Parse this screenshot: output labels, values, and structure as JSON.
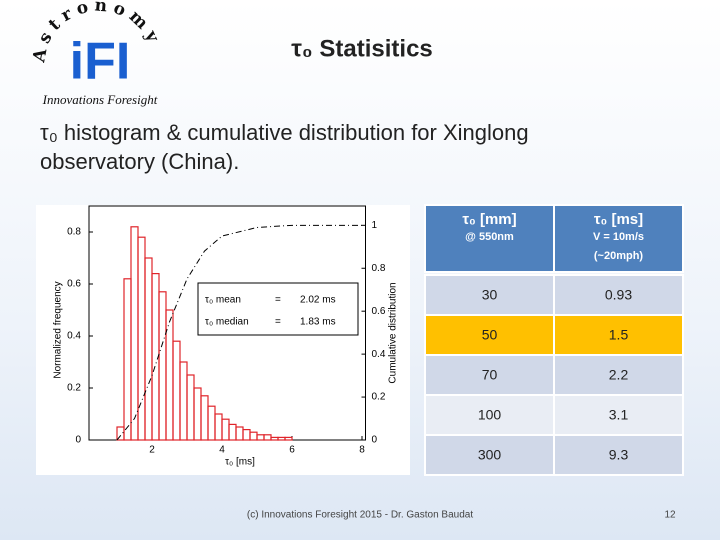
{
  "logo": {
    "arc": "Astronomy",
    "mark": "iFI",
    "name": "Innovations Foresight"
  },
  "header": {
    "title": "τ₀ Statisitics",
    "subtitle": "τ₀ histogram & cumulative distribution for Xinglong observatory (China)."
  },
  "chart_data": {
    "type": "histogram",
    "bins": [
      1.0,
      1.2,
      1.4,
      1.6,
      1.8,
      2.0,
      2.2,
      2.4,
      2.6,
      2.8,
      3.0,
      3.2,
      3.4,
      3.6,
      3.8,
      4.0,
      4.2,
      4.4,
      4.6,
      4.8,
      5.0,
      5.2,
      5.4,
      5.6,
      5.8,
      6.0
    ],
    "values": [
      0.05,
      0.62,
      0.82,
      0.78,
      0.7,
      0.64,
      0.57,
      0.5,
      0.38,
      0.3,
      0.25,
      0.2,
      0.17,
      0.13,
      0.1,
      0.08,
      0.06,
      0.05,
      0.04,
      0.03,
      0.02,
      0.02,
      0.01,
      0.01,
      0.01
    ],
    "color": "#e0242a",
    "cumulative": {
      "x": [
        1.0,
        1.5,
        2.0,
        2.5,
        3.0,
        3.5,
        4.0,
        5.0,
        6.0,
        8.0
      ],
      "values": [
        0,
        0.1,
        0.3,
        0.55,
        0.75,
        0.88,
        0.95,
        0.99,
        1,
        1
      ],
      "axis": "y2",
      "color": "#000000"
    },
    "xlabel": "τ₀ [ms]",
    "ylabel": "Normalized frequency",
    "y2label": "Cumulative distribution",
    "xlim": [
      0.2,
      8.1
    ],
    "xticks": [
      2,
      4,
      6,
      8
    ],
    "ylim": [
      0,
      0.9
    ],
    "yticks": [
      0,
      0.2,
      0.4,
      0.6,
      0.8
    ],
    "y2lim": [
      0,
      1.09
    ],
    "y2ticks": [
      0,
      0.2,
      0.4,
      0.6,
      0.8,
      1
    ],
    "annotations": [
      [
        "τ₀ mean",
        "=",
        "2.02 ms"
      ],
      [
        "τ₀ median",
        "=",
        "1.83 ms"
      ]
    ]
  },
  "table": {
    "header": [
      [
        "τ₀ [mm]",
        "@ 550nm"
      ],
      [
        "τ₀ [ms]",
        "V = 10m/s",
        "(~20mph)"
      ]
    ],
    "rows": [
      [
        30,
        0.93
      ],
      [
        50,
        1.5
      ],
      [
        70,
        2.2
      ],
      [
        100,
        3.1
      ],
      [
        300,
        9.3
      ]
    ]
  },
  "footer": {
    "text": "(c) Innovations Foresight 2015 - Dr. Gaston Baudat",
    "page": "12"
  }
}
